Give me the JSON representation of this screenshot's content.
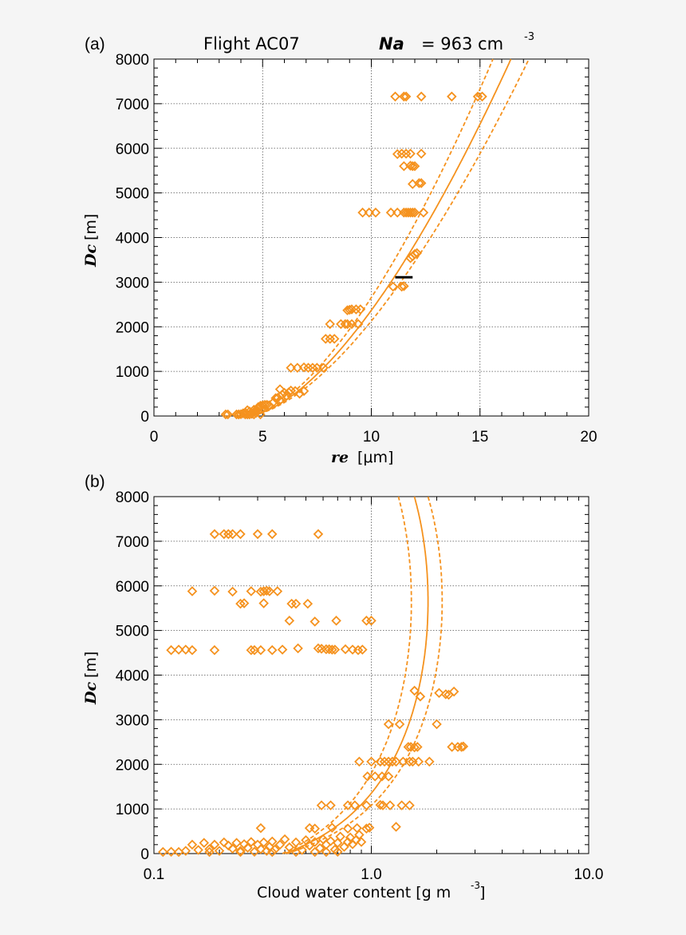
{
  "figure": {
    "title_left": "Flight AC07",
    "title_var": "Na",
    "title_eq": "= 963 cm",
    "title_exp": "-3",
    "accent_color": "#f5921e",
    "marker_color": "#f5921e",
    "bar_color": "#000000"
  },
  "chart_data": [
    {
      "panel": "(a)",
      "type": "scatter",
      "xlabel_var": "re",
      "xlabel_unit": "[μm]",
      "ylabel_var": "Dc",
      "ylabel_unit": "[m]",
      "xscale": "linear",
      "xlim": [
        0,
        20
      ],
      "ylim": [
        0,
        8000
      ],
      "x_ticks": [
        "0",
        "5",
        "10",
        "15",
        "20"
      ],
      "y_ticks": [
        "0",
        "1000",
        "2000",
        "3000",
        "4000",
        "5000",
        "6000",
        "7000",
        "8000"
      ],
      "x_minor_ticks": [
        1,
        2,
        3,
        4,
        6,
        7,
        8,
        9,
        11,
        12,
        13,
        14,
        16,
        17,
        18,
        19
      ],
      "grid": true,
      "points": [
        [
          3.3,
          0
        ],
        [
          3.4,
          0
        ],
        [
          3.8,
          0
        ],
        [
          3.9,
          20
        ],
        [
          4.0,
          40
        ],
        [
          4.1,
          60
        ],
        [
          4.2,
          80
        ],
        [
          4.3,
          20
        ],
        [
          4.4,
          100
        ],
        [
          4.5,
          50
        ],
        [
          4.6,
          140
        ],
        [
          4.7,
          120
        ],
        [
          4.8,
          200
        ],
        [
          4.9,
          230
        ],
        [
          5.0,
          240
        ],
        [
          5.1,
          250
        ],
        [
          4.4,
          10
        ],
        [
          4.6,
          30
        ],
        [
          4.2,
          0
        ],
        [
          4.7,
          70
        ],
        [
          4.8,
          160
        ],
        [
          5.0,
          180
        ],
        [
          3.9,
          0
        ],
        [
          4.3,
          130
        ],
        [
          4.6,
          90
        ],
        [
          4.9,
          30
        ],
        [
          5.2,
          250
        ],
        [
          5.3,
          240
        ],
        [
          5.5,
          310
        ],
        [
          5.6,
          400
        ],
        [
          5.7,
          410
        ],
        [
          6.0,
          520
        ],
        [
          6.2,
          530
        ],
        [
          6.5,
          560
        ],
        [
          6.9,
          560
        ],
        [
          6.3,
          570
        ],
        [
          6.7,
          500
        ],
        [
          5.9,
          480
        ],
        [
          5.8,
          350
        ],
        [
          6.1,
          450
        ],
        [
          5.8,
          600
        ],
        [
          6.3,
          1080
        ],
        [
          6.6,
          1080
        ],
        [
          6.9,
          1090
        ],
        [
          7.1,
          1080
        ],
        [
          7.3,
          1080
        ],
        [
          7.5,
          1080
        ],
        [
          7.8,
          1080
        ],
        [
          7.9,
          1730
        ],
        [
          8.1,
          1730
        ],
        [
          8.3,
          1730
        ],
        [
          8.1,
          2060
        ],
        [
          8.6,
          2060
        ],
        [
          8.8,
          2060
        ],
        [
          8.9,
          2060
        ],
        [
          9.1,
          2060
        ],
        [
          9.4,
          2060
        ],
        [
          8.9,
          2370
        ],
        [
          9.0,
          2380
        ],
        [
          9.1,
          2390
        ],
        [
          9.3,
          2390
        ],
        [
          9.5,
          2390
        ],
        [
          11.0,
          2900
        ],
        [
          11.4,
          2900
        ],
        [
          11.5,
          2910
        ],
        [
          11.8,
          3540
        ],
        [
          11.9,
          3580
        ],
        [
          12.0,
          3630
        ],
        [
          12.1,
          3650
        ],
        [
          9.6,
          4560
        ],
        [
          9.9,
          4560
        ],
        [
          10.2,
          4560
        ],
        [
          10.9,
          4560
        ],
        [
          11.2,
          4560
        ],
        [
          11.5,
          4560
        ],
        [
          11.6,
          4560
        ],
        [
          11.7,
          4560
        ],
        [
          11.8,
          4560
        ],
        [
          11.9,
          4560
        ],
        [
          12.0,
          4560
        ],
        [
          12.4,
          4560
        ],
        [
          11.9,
          5200
        ],
        [
          12.2,
          5220
        ],
        [
          12.3,
          5220
        ],
        [
          11.5,
          5600
        ],
        [
          11.8,
          5610
        ],
        [
          11.9,
          5600
        ],
        [
          12.0,
          5600
        ],
        [
          11.2,
          5870
        ],
        [
          11.4,
          5880
        ],
        [
          11.6,
          5880
        ],
        [
          11.8,
          5880
        ],
        [
          12.3,
          5880
        ],
        [
          11.1,
          7160
        ],
        [
          11.5,
          7160
        ],
        [
          11.6,
          7160
        ],
        [
          12.3,
          7160
        ],
        [
          13.7,
          7160
        ],
        [
          14.9,
          7160
        ],
        [
          15.1,
          7160
        ]
      ],
      "reference_bar": {
        "x0": 11.1,
        "x1": 11.9,
        "y": 3110
      }
    },
    {
      "panel": "(b)",
      "type": "scatter",
      "xlabel": "Cloud water content [g m",
      "xlabel_exp": "-3",
      "xlabel_close": "]",
      "ylabel_var": "Dc",
      "ylabel_unit": "[m]",
      "xscale": "log",
      "xlim": [
        0.1,
        10.0
      ],
      "ylim": [
        0,
        8000
      ],
      "x_ticks": [
        "0.1",
        "1.0",
        "10.0"
      ],
      "y_ticks": [
        "0",
        "1000",
        "2000",
        "3000",
        "4000",
        "5000",
        "6000",
        "7000",
        "8000"
      ],
      "x_minor_ticks": [
        0.2,
        0.3,
        0.4,
        0.5,
        0.6,
        0.7,
        0.8,
        0.9,
        2,
        3,
        4,
        5,
        6,
        7,
        8,
        9
      ],
      "grid": true,
      "points": [
        [
          0.19,
          7160
        ],
        [
          0.21,
          7160
        ],
        [
          0.22,
          7160
        ],
        [
          0.23,
          7160
        ],
        [
          0.25,
          7160
        ],
        [
          0.3,
          7160
        ],
        [
          0.35,
          7160
        ],
        [
          0.57,
          7160
        ],
        [
          0.15,
          5880
        ],
        [
          0.19,
          5890
        ],
        [
          0.23,
          5870
        ],
        [
          0.28,
          5880
        ],
        [
          0.31,
          5870
        ],
        [
          0.32,
          5880
        ],
        [
          0.33,
          5890
        ],
        [
          0.34,
          5880
        ],
        [
          0.37,
          5880
        ],
        [
          0.25,
          5600
        ],
        [
          0.26,
          5610
        ],
        [
          0.32,
          5610
        ],
        [
          0.43,
          5600
        ],
        [
          0.45,
          5600
        ],
        [
          0.51,
          5600
        ],
        [
          0.42,
          5220
        ],
        [
          0.55,
          5200
        ],
        [
          0.69,
          5220
        ],
        [
          0.95,
          5220
        ],
        [
          1.0,
          5220
        ],
        [
          0.12,
          4560
        ],
        [
          0.13,
          4570
        ],
        [
          0.14,
          4570
        ],
        [
          0.15,
          4560
        ],
        [
          0.19,
          4560
        ],
        [
          0.28,
          4560
        ],
        [
          0.29,
          4560
        ],
        [
          0.31,
          4560
        ],
        [
          0.35,
          4560
        ],
        [
          0.39,
          4570
        ],
        [
          0.46,
          4600
        ],
        [
          0.57,
          4600
        ],
        [
          0.59,
          4590
        ],
        [
          0.62,
          4580
        ],
        [
          0.64,
          4580
        ],
        [
          0.66,
          4570
        ],
        [
          0.68,
          4570
        ],
        [
          0.76,
          4580
        ],
        [
          0.82,
          4570
        ],
        [
          0.87,
          4560
        ],
        [
          0.91,
          4570
        ],
        [
          1.58,
          3650
        ],
        [
          1.68,
          3520
        ],
        [
          2.05,
          3600
        ],
        [
          2.2,
          3570
        ],
        [
          2.27,
          3560
        ],
        [
          2.4,
          3630
        ],
        [
          1.2,
          2900
        ],
        [
          1.35,
          2900
        ],
        [
          2.0,
          2900
        ],
        [
          1.48,
          2390
        ],
        [
          1.52,
          2390
        ],
        [
          1.58,
          2380
        ],
        [
          1.63,
          2390
        ],
        [
          2.35,
          2390
        ],
        [
          2.5,
          2390
        ],
        [
          2.6,
          2390
        ],
        [
          2.65,
          2400
        ],
        [
          0.88,
          2060
        ],
        [
          1.0,
          2060
        ],
        [
          1.1,
          2060
        ],
        [
          1.15,
          2060
        ],
        [
          1.2,
          2060
        ],
        [
          1.25,
          2060
        ],
        [
          1.3,
          2060
        ],
        [
          1.4,
          2060
        ],
        [
          1.5,
          2060
        ],
        [
          1.55,
          2060
        ],
        [
          1.65,
          2060
        ],
        [
          1.85,
          2060
        ],
        [
          0.96,
          1730
        ],
        [
          1.04,
          1730
        ],
        [
          1.12,
          1730
        ],
        [
          1.2,
          1730
        ],
        [
          0.59,
          1080
        ],
        [
          0.65,
          1080
        ],
        [
          0.78,
          1080
        ],
        [
          0.84,
          1080
        ],
        [
          0.95,
          1080
        ],
        [
          1.1,
          1090
        ],
        [
          1.13,
          1080
        ],
        [
          1.22,
          1080
        ],
        [
          1.38,
          1080
        ],
        [
          1.5,
          1080
        ],
        [
          0.31,
          570
        ],
        [
          0.52,
          570
        ],
        [
          0.55,
          560
        ],
        [
          0.66,
          580
        ],
        [
          0.78,
          560
        ],
        [
          0.86,
          570
        ],
        [
          0.95,
          560
        ],
        [
          0.98,
          580
        ],
        [
          1.3,
          600
        ],
        [
          0.11,
          20
        ],
        [
          0.12,
          40
        ],
        [
          0.13,
          30
        ],
        [
          0.14,
          60
        ],
        [
          0.15,
          200
        ],
        [
          0.16,
          80
        ],
        [
          0.17,
          240
        ],
        [
          0.18,
          100
        ],
        [
          0.19,
          200
        ],
        [
          0.2,
          60
        ],
        [
          0.21,
          250
        ],
        [
          0.22,
          180
        ],
        [
          0.23,
          110
        ],
        [
          0.24,
          240
        ],
        [
          0.25,
          60
        ],
        [
          0.26,
          210
        ],
        [
          0.27,
          130
        ],
        [
          0.28,
          260
        ],
        [
          0.29,
          40
        ],
        [
          0.3,
          200
        ],
        [
          0.31,
          100
        ],
        [
          0.32,
          250
        ],
        [
          0.33,
          60
        ],
        [
          0.34,
          150
        ],
        [
          0.35,
          270
        ],
        [
          0.36,
          90
        ],
        [
          0.38,
          200
        ],
        [
          0.4,
          320
        ],
        [
          0.42,
          140
        ],
        [
          0.45,
          250
        ],
        [
          0.48,
          80
        ],
        [
          0.5,
          300
        ],
        [
          0.52,
          180
        ],
        [
          0.55,
          260
        ],
        [
          0.58,
          120
        ],
        [
          0.6,
          320
        ],
        [
          0.62,
          200
        ],
        [
          0.65,
          280
        ],
        [
          0.68,
          90
        ],
        [
          0.7,
          240
        ],
        [
          0.72,
          380
        ],
        [
          0.75,
          150
        ],
        [
          0.78,
          260
        ],
        [
          0.8,
          360
        ],
        [
          0.82,
          210
        ],
        [
          0.85,
          300
        ],
        [
          0.88,
          420
        ],
        [
          0.9,
          260
        ],
        [
          0.62,
          0
        ],
        [
          0.45,
          0
        ],
        [
          0.35,
          10
        ],
        [
          0.25,
          0
        ],
        [
          0.18,
          0
        ],
        [
          0.55,
          30
        ],
        [
          0.7,
          40
        ]
      ]
    }
  ]
}
